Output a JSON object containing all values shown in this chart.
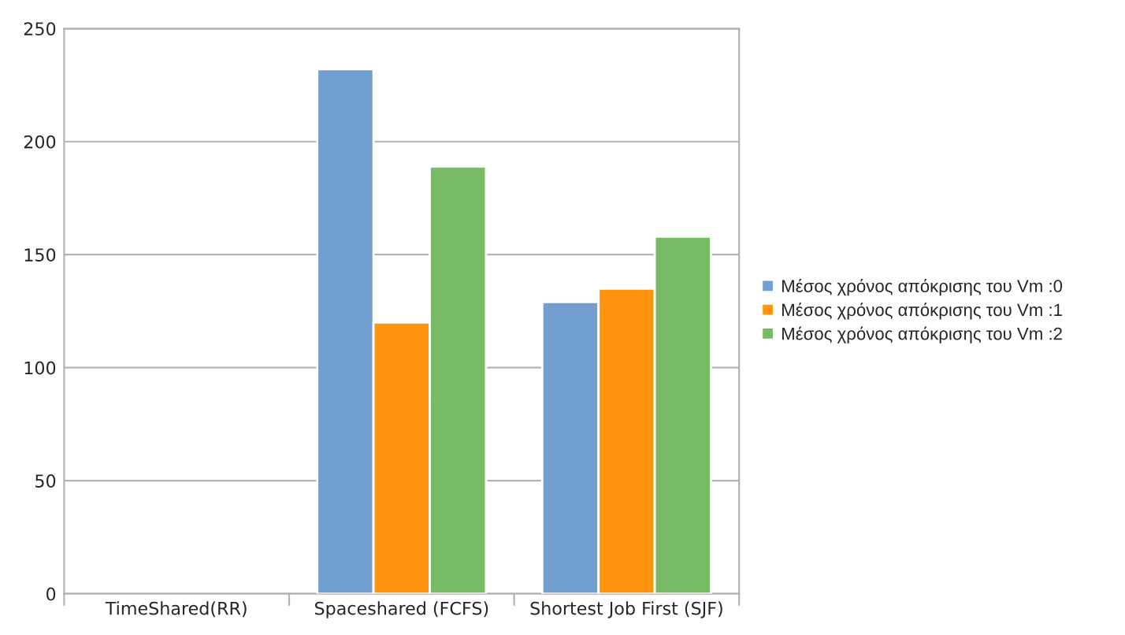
{
  "chart_data": {
    "type": "bar",
    "categories": [
      "TimeShared(RR)",
      "Spaceshared (FCFS)",
      "Shortest Job First (SJF)"
    ],
    "series": [
      {
        "name": "Μέσος χρόνος απόκρισης του Vm :0",
        "color": "#729fcf",
        "values": [
          null,
          232,
          129
        ]
      },
      {
        "name": "Μέσος χρόνος απόκρισης του Vm :1",
        "color": "#ff950e",
        "values": [
          null,
          120,
          135
        ]
      },
      {
        "name": "Μέσος χρόνος απόκρισης του Vm :2",
        "color": "#77bc65",
        "values": [
          null,
          189,
          158
        ]
      }
    ],
    "ylim": [
      0,
      250
    ],
    "yticks": [
      0,
      50,
      100,
      150,
      200,
      250
    ],
    "grid": "y",
    "legend": "right"
  }
}
